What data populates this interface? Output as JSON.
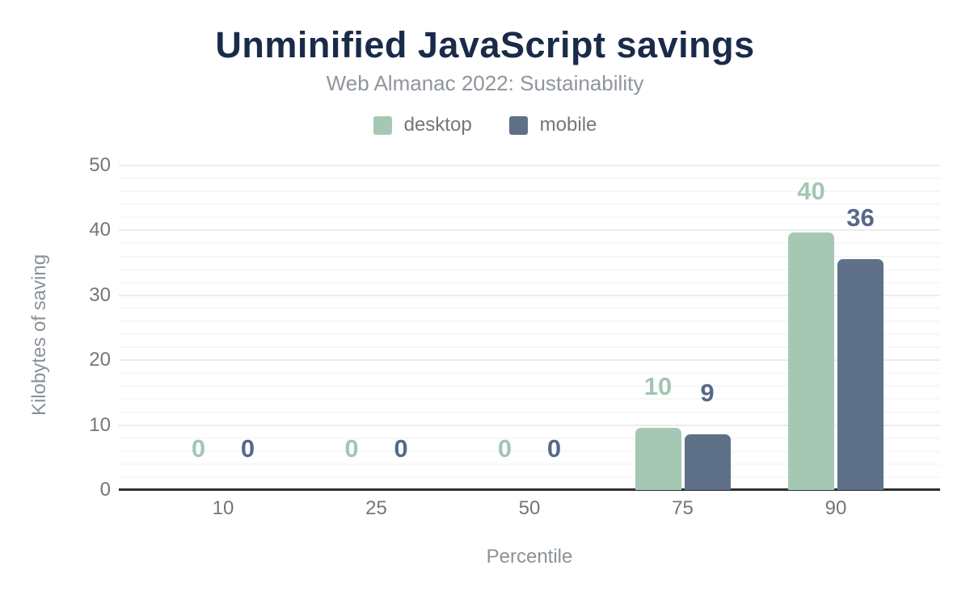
{
  "chart_data": {
    "type": "bar",
    "title": "Unminified JavaScript savings",
    "subtitle": "Web Almanac 2022: Sustainability",
    "xlabel": "Percentile",
    "ylabel": "Kilobytes of saving",
    "categories": [
      "10",
      "25",
      "50",
      "75",
      "90"
    ],
    "series": [
      {
        "name": "desktop",
        "color": "#a5c8b5",
        "label_color": "#a2c6b2",
        "values": [
          0,
          0,
          0,
          10,
          40
        ],
        "display_values": [
          "0",
          "0",
          "0",
          "10",
          "40"
        ],
        "bar_heights_kb": [
          0,
          0,
          0,
          9.6,
          39.7
        ]
      },
      {
        "name": "mobile",
        "color": "#5e7189",
        "label_color": "#55688b",
        "values": [
          0,
          0,
          0,
          9,
          36
        ],
        "display_values": [
          "0",
          "0",
          "0",
          "9",
          "36"
        ],
        "bar_heights_kb": [
          0,
          0,
          0,
          8.6,
          35.6
        ]
      }
    ],
    "y_ticks": [
      0,
      10,
      20,
      30,
      40,
      50
    ],
    "ylim": [
      0,
      50
    ],
    "minor_grid_step": 2,
    "major_grid_step": 10,
    "grid": true,
    "legend_position": "top"
  },
  "colors": {
    "background": "#ffffff",
    "title": "#1a2b49",
    "subtitle": "#8f959c",
    "tick_label": "#757575",
    "axis_title": "#8b9299",
    "legend_label": "#71777d",
    "grid_major": "#ececec",
    "grid_minor": "#f7f7f7",
    "baseline": "#2e2e2e"
  }
}
